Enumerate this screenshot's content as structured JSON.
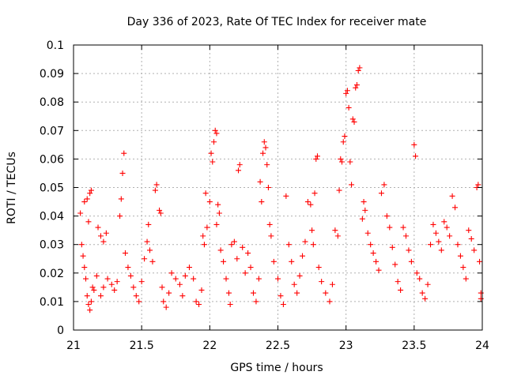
{
  "chart_data": {
    "type": "scatter",
    "title": "Day 336 of 2023, Rate Of TEC Index for receiver mate",
    "xlabel": "GPS time / hours",
    "ylabel": "ROTI / TECUs",
    "xlim": [
      21,
      24
    ],
    "ylim": [
      0,
      0.1
    ],
    "x_ticks": [
      "21",
      "21.5",
      "22",
      "22.5",
      "23",
      "23.5",
      "24"
    ],
    "y_ticks": [
      "0",
      "0.01",
      "0.02",
      "0.03",
      "0.04",
      "0.05",
      "0.06",
      "0.07",
      "0.08",
      "0.09",
      "0.1"
    ],
    "x_tick_values": [
      21,
      21.5,
      22,
      22.5,
      23,
      23.5,
      24
    ],
    "y_tick_values": [
      0,
      0.01,
      0.02,
      0.03,
      0.04,
      0.05,
      0.06,
      0.07,
      0.08,
      0.09,
      0.1
    ],
    "grid": true,
    "marker": "plus",
    "color": "#ff0000",
    "series": [
      {
        "name": "ROTI",
        "points": [
          [
            21.05,
            0.041
          ],
          [
            21.06,
            0.03
          ],
          [
            21.07,
            0.026
          ],
          [
            21.08,
            0.022
          ],
          [
            21.09,
            0.018
          ],
          [
            21.1,
            0.012
          ],
          [
            21.11,
            0.009
          ],
          [
            21.12,
            0.007
          ],
          [
            21.13,
            0.01
          ],
          [
            21.14,
            0.015
          ],
          [
            21.08,
            0.045
          ],
          [
            21.1,
            0.046
          ],
          [
            21.12,
            0.048
          ],
          [
            21.13,
            0.049
          ],
          [
            21.11,
            0.038
          ],
          [
            21.15,
            0.014
          ],
          [
            21.17,
            0.019
          ],
          [
            21.18,
            0.036
          ],
          [
            21.2,
            0.033
          ],
          [
            21.22,
            0.031
          ],
          [
            21.24,
            0.034
          ],
          [
            21.2,
            0.012
          ],
          [
            21.22,
            0.015
          ],
          [
            21.25,
            0.018
          ],
          [
            21.28,
            0.016
          ],
          [
            21.3,
            0.014
          ],
          [
            21.32,
            0.017
          ],
          [
            21.34,
            0.04
          ],
          [
            21.35,
            0.046
          ],
          [
            21.36,
            0.055
          ],
          [
            21.37,
            0.062
          ],
          [
            21.38,
            0.027
          ],
          [
            21.4,
            0.022
          ],
          [
            21.42,
            0.019
          ],
          [
            21.44,
            0.015
          ],
          [
            21.46,
            0.012
          ],
          [
            21.48,
            0.01
          ],
          [
            21.5,
            0.017
          ],
          [
            21.52,
            0.025
          ],
          [
            21.54,
            0.031
          ],
          [
            21.55,
            0.037
          ],
          [
            21.56,
            0.028
          ],
          [
            21.58,
            0.024
          ],
          [
            21.6,
            0.049
          ],
          [
            21.61,
            0.051
          ],
          [
            21.63,
            0.042
          ],
          [
            21.64,
            0.041
          ],
          [
            21.65,
            0.015
          ],
          [
            21.66,
            0.01
          ],
          [
            21.68,
            0.008
          ],
          [
            21.7,
            0.013
          ],
          [
            21.72,
            0.02
          ],
          [
            21.75,
            0.018
          ],
          [
            21.78,
            0.016
          ],
          [
            21.8,
            0.012
          ],
          [
            21.82,
            0.019
          ],
          [
            21.85,
            0.022
          ],
          [
            21.88,
            0.018
          ],
          [
            21.9,
            0.01
          ],
          [
            21.92,
            0.009
          ],
          [
            21.94,
            0.014
          ],
          [
            21.95,
            0.033
          ],
          [
            21.96,
            0.03
          ],
          [
            21.98,
            0.036
          ],
          [
            21.97,
            0.048
          ],
          [
            22.0,
            0.045
          ],
          [
            22.01,
            0.062
          ],
          [
            22.02,
            0.059
          ],
          [
            22.03,
            0.066
          ],
          [
            22.04,
            0.07
          ],
          [
            22.05,
            0.069
          ],
          [
            22.06,
            0.044
          ],
          [
            22.07,
            0.041
          ],
          [
            22.05,
            0.037
          ],
          [
            22.08,
            0.028
          ],
          [
            22.1,
            0.024
          ],
          [
            22.12,
            0.018
          ],
          [
            22.14,
            0.013
          ],
          [
            22.15,
            0.009
          ],
          [
            22.16,
            0.03
          ],
          [
            22.18,
            0.031
          ],
          [
            22.2,
            0.025
          ],
          [
            22.21,
            0.056
          ],
          [
            22.22,
            0.058
          ],
          [
            22.24,
            0.029
          ],
          [
            22.26,
            0.02
          ],
          [
            22.28,
            0.027
          ],
          [
            22.3,
            0.022
          ],
          [
            22.32,
            0.013
          ],
          [
            22.34,
            0.01
          ],
          [
            22.36,
            0.018
          ],
          [
            22.37,
            0.052
          ],
          [
            22.38,
            0.045
          ],
          [
            22.39,
            0.062
          ],
          [
            22.4,
            0.066
          ],
          [
            22.41,
            0.064
          ],
          [
            22.42,
            0.058
          ],
          [
            22.43,
            0.05
          ],
          [
            22.44,
            0.037
          ],
          [
            22.45,
            0.033
          ],
          [
            22.47,
            0.024
          ],
          [
            22.5,
            0.018
          ],
          [
            22.52,
            0.012
          ],
          [
            22.54,
            0.009
          ],
          [
            22.56,
            0.047
          ],
          [
            22.58,
            0.03
          ],
          [
            22.6,
            0.024
          ],
          [
            22.62,
            0.016
          ],
          [
            22.64,
            0.013
          ],
          [
            22.66,
            0.019
          ],
          [
            22.68,
            0.026
          ],
          [
            22.7,
            0.031
          ],
          [
            22.72,
            0.045
          ],
          [
            22.74,
            0.044
          ],
          [
            22.75,
            0.035
          ],
          [
            22.76,
            0.03
          ],
          [
            22.77,
            0.048
          ],
          [
            22.78,
            0.06
          ],
          [
            22.79,
            0.061
          ],
          [
            22.8,
            0.022
          ],
          [
            22.82,
            0.017
          ],
          [
            22.85,
            0.013
          ],
          [
            22.88,
            0.01
          ],
          [
            22.9,
            0.016
          ],
          [
            22.92,
            0.035
          ],
          [
            22.94,
            0.033
          ],
          [
            22.95,
            0.049
          ],
          [
            22.96,
            0.06
          ],
          [
            22.97,
            0.059
          ],
          [
            22.98,
            0.066
          ],
          [
            22.99,
            0.068
          ],
          [
            23.0,
            0.083
          ],
          [
            23.01,
            0.084
          ],
          [
            23.02,
            0.078
          ],
          [
            23.03,
            0.059
          ],
          [
            23.04,
            0.051
          ],
          [
            23.05,
            0.074
          ],
          [
            23.06,
            0.073
          ],
          [
            23.07,
            0.085
          ],
          [
            23.08,
            0.086
          ],
          [
            23.09,
            0.091
          ],
          [
            23.1,
            0.092
          ],
          [
            23.12,
            0.039
          ],
          [
            23.13,
            0.045
          ],
          [
            23.14,
            0.042
          ],
          [
            23.16,
            0.034
          ],
          [
            23.18,
            0.03
          ],
          [
            23.2,
            0.027
          ],
          [
            23.22,
            0.024
          ],
          [
            23.24,
            0.021
          ],
          [
            23.26,
            0.048
          ],
          [
            23.28,
            0.051
          ],
          [
            23.3,
            0.04
          ],
          [
            23.32,
            0.036
          ],
          [
            23.34,
            0.029
          ],
          [
            23.36,
            0.023
          ],
          [
            23.38,
            0.017
          ],
          [
            23.4,
            0.014
          ],
          [
            23.42,
            0.036
          ],
          [
            23.44,
            0.033
          ],
          [
            23.46,
            0.028
          ],
          [
            23.48,
            0.024
          ],
          [
            23.5,
            0.065
          ],
          [
            23.51,
            0.061
          ],
          [
            23.52,
            0.02
          ],
          [
            23.54,
            0.018
          ],
          [
            23.56,
            0.013
          ],
          [
            23.58,
            0.011
          ],
          [
            23.6,
            0.016
          ],
          [
            23.62,
            0.03
          ],
          [
            23.64,
            0.037
          ],
          [
            23.66,
            0.034
          ],
          [
            23.68,
            0.031
          ],
          [
            23.7,
            0.028
          ],
          [
            23.72,
            0.038
          ],
          [
            23.74,
            0.036
          ],
          [
            23.76,
            0.033
          ],
          [
            23.78,
            0.047
          ],
          [
            23.8,
            0.043
          ],
          [
            23.82,
            0.03
          ],
          [
            23.84,
            0.026
          ],
          [
            23.86,
            0.022
          ],
          [
            23.88,
            0.018
          ],
          [
            23.9,
            0.035
          ],
          [
            23.92,
            0.032
          ],
          [
            23.94,
            0.028
          ],
          [
            23.96,
            0.05
          ],
          [
            23.97,
            0.051
          ],
          [
            23.98,
            0.024
          ],
          [
            23.99,
            0.013
          ],
          [
            23.99,
            0.011
          ]
        ]
      }
    ]
  }
}
